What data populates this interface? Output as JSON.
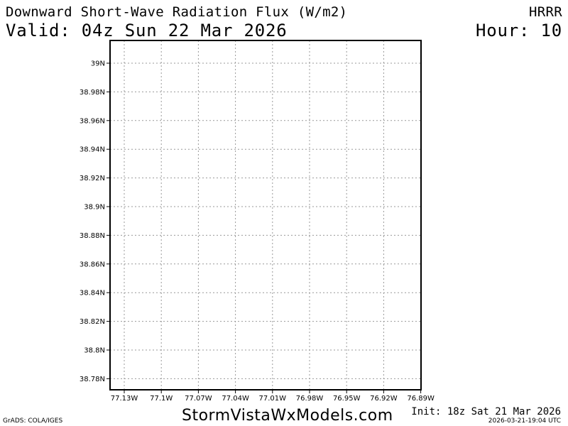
{
  "header": {
    "title": "Downward Short-Wave Radiation Flux (W/m2)",
    "valid": "Valid: 04z Sun 22 Mar 2026",
    "model": "HRRR",
    "hour": "Hour: 10"
  },
  "map": {
    "lat_labels": [
      "39N",
      "38.98N",
      "38.96N",
      "38.94N",
      "38.92N",
      "38.9N",
      "38.88N",
      "38.86N",
      "38.84N",
      "38.82N",
      "38.8N",
      "38.78N"
    ],
    "lon_labels": [
      "77.13W",
      "77.1W",
      "77.07W",
      "77.04W",
      "77.01W",
      "76.98W",
      "76.95W",
      "76.92W",
      "76.89W"
    ],
    "grid": true,
    "gridline_style": "dotted",
    "colors": {
      "frame": "#000000",
      "grid": "#999999",
      "background": "#ffffff"
    }
  },
  "footer": {
    "site": "StormVistaWxModels.com",
    "init": "Init: 18z Sat 21 Mar 2026",
    "timestamp": "2026-03-21-19:04 UTC",
    "grads": "GrADS: COLA/IGES"
  }
}
